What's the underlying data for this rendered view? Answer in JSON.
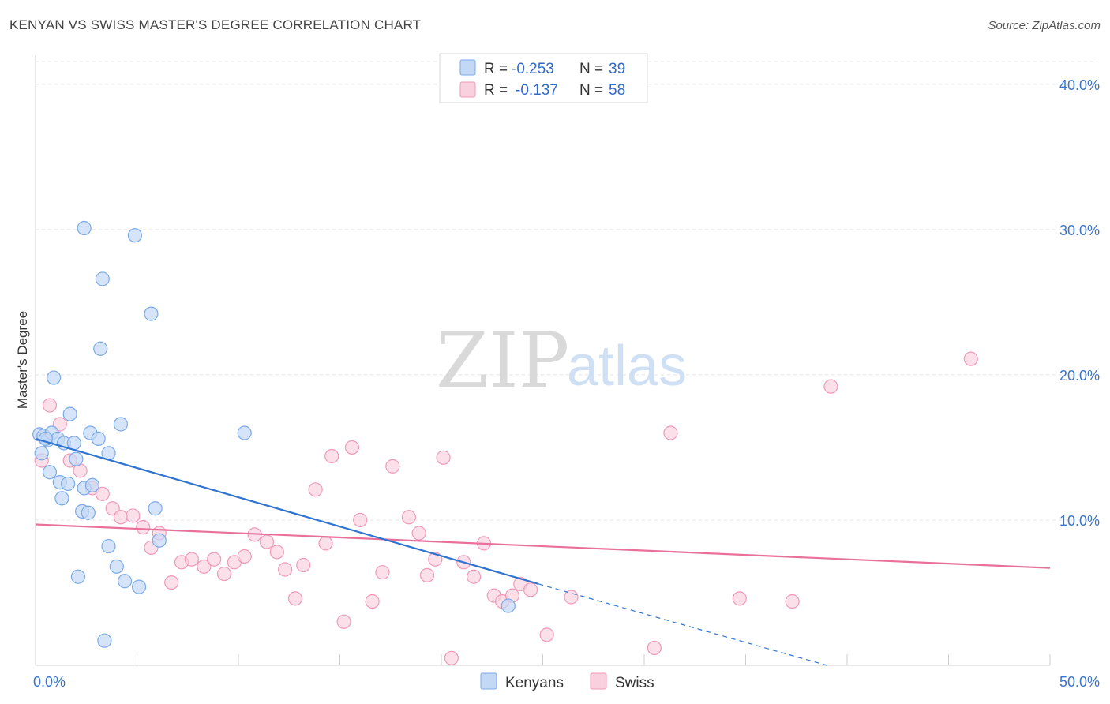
{
  "title": "KENYAN VS SWISS MASTER'S DEGREE CORRELATION CHART",
  "source": "Source: ZipAtlas.com",
  "watermark": {
    "zip": "ZIP",
    "atlas": "atlas"
  },
  "colors": {
    "kenyans": "#7aaae8",
    "kenyans_fill": "#c3d8f5",
    "swiss": "#f09ab8",
    "swiss_fill": "#f9d0de",
    "blue_line": "#2f74d0",
    "pink_line": "#e8709a",
    "tick_text": "#3b74c9"
  },
  "chart_data": {
    "type": "scatter",
    "title": "KENYAN VS SWISS MASTER'S DEGREE CORRELATION CHART",
    "xlabel": "",
    "ylabel": "Master's Degree",
    "xlim": [
      0,
      50
    ],
    "ylim": [
      0,
      42
    ],
    "x_tick_labels": [
      "0.0%",
      "50.0%"
    ],
    "y_ticks": [
      10,
      20,
      30,
      40
    ],
    "y_tick_labels": [
      "10.0%",
      "20.0%",
      "30.0%",
      "40.0%"
    ],
    "grid": true,
    "legend_top": [
      {
        "r_label": "R =",
        "r_value": "-0.253",
        "n_label": "N =",
        "n_value": "39"
      },
      {
        "r_label": "R =",
        "r_value": "-0.137",
        "n_label": "N =",
        "n_value": "58"
      }
    ],
    "series": [
      {
        "name": "Kenyans",
        "points": [
          [
            0.2,
            15.9
          ],
          [
            0.3,
            14.6
          ],
          [
            0.4,
            15.8
          ],
          [
            0.6,
            15.5
          ],
          [
            0.7,
            13.3
          ],
          [
            0.8,
            16.0
          ],
          [
            0.9,
            19.8
          ],
          [
            1.1,
            15.6
          ],
          [
            1.2,
            12.6
          ],
          [
            1.3,
            11.5
          ],
          [
            1.4,
            15.3
          ],
          [
            1.6,
            12.5
          ],
          [
            1.7,
            17.3
          ],
          [
            1.9,
            15.3
          ],
          [
            2.0,
            14.2
          ],
          [
            2.1,
            6.1
          ],
          [
            2.3,
            10.6
          ],
          [
            2.4,
            12.2
          ],
          [
            2.4,
            30.1
          ],
          [
            2.6,
            10.5
          ],
          [
            2.7,
            16.0
          ],
          [
            2.8,
            12.4
          ],
          [
            3.1,
            15.6
          ],
          [
            3.2,
            21.8
          ],
          [
            3.3,
            26.6
          ],
          [
            3.4,
            1.7
          ],
          [
            3.6,
            14.6
          ],
          [
            3.6,
            8.2
          ],
          [
            4.0,
            6.8
          ],
          [
            4.2,
            16.6
          ],
          [
            4.4,
            5.8
          ],
          [
            4.9,
            29.6
          ],
          [
            5.1,
            5.4
          ],
          [
            5.7,
            24.2
          ],
          [
            5.9,
            10.8
          ],
          [
            6.1,
            8.6
          ],
          [
            10.3,
            16.0
          ],
          [
            23.3,
            4.1
          ],
          [
            0.5,
            15.6
          ]
        ],
        "trend": {
          "x0": 0,
          "y0": 15.6,
          "x1": 24.8,
          "y1": 5.6,
          "dash_x1": 39,
          "dash_y1": 0
        }
      },
      {
        "name": "Swiss",
        "points": [
          [
            0.3,
            14.1
          ],
          [
            0.7,
            17.9
          ],
          [
            1.2,
            16.6
          ],
          [
            1.7,
            14.1
          ],
          [
            2.2,
            13.4
          ],
          [
            2.8,
            12.2
          ],
          [
            3.3,
            11.8
          ],
          [
            3.8,
            10.8
          ],
          [
            4.2,
            10.2
          ],
          [
            4.8,
            10.3
          ],
          [
            5.3,
            9.5
          ],
          [
            5.7,
            8.1
          ],
          [
            6.1,
            9.1
          ],
          [
            6.7,
            5.7
          ],
          [
            7.2,
            7.1
          ],
          [
            7.7,
            7.3
          ],
          [
            8.3,
            6.8
          ],
          [
            8.8,
            7.3
          ],
          [
            9.3,
            6.3
          ],
          [
            9.8,
            7.1
          ],
          [
            10.3,
            7.5
          ],
          [
            10.8,
            9.0
          ],
          [
            11.4,
            8.5
          ],
          [
            11.9,
            7.8
          ],
          [
            12.3,
            6.6
          ],
          [
            12.8,
            4.6
          ],
          [
            13.2,
            6.9
          ],
          [
            13.8,
            12.1
          ],
          [
            14.3,
            8.4
          ],
          [
            14.6,
            14.4
          ],
          [
            15.2,
            3.0
          ],
          [
            15.6,
            15.0
          ],
          [
            16.0,
            10.0
          ],
          [
            16.6,
            4.4
          ],
          [
            17.1,
            6.4
          ],
          [
            17.6,
            13.7
          ],
          [
            18.4,
            10.2
          ],
          [
            18.9,
            9.1
          ],
          [
            19.3,
            6.2
          ],
          [
            19.7,
            7.3
          ],
          [
            20.1,
            14.3
          ],
          [
            20.5,
            0.5
          ],
          [
            21.1,
            7.1
          ],
          [
            21.6,
            6.1
          ],
          [
            22.1,
            8.4
          ],
          [
            22.6,
            4.8
          ],
          [
            23.0,
            4.4
          ],
          [
            23.5,
            4.8
          ],
          [
            23.9,
            5.6
          ],
          [
            24.4,
            5.2
          ],
          [
            25.2,
            2.1
          ],
          [
            26.4,
            4.7
          ],
          [
            30.5,
            1.2
          ],
          [
            31.3,
            16.0
          ],
          [
            34.7,
            4.6
          ],
          [
            37.3,
            4.4
          ],
          [
            39.2,
            19.2
          ],
          [
            46.1,
            21.1
          ]
        ],
        "trend": {
          "x0": 0,
          "y0": 9.7,
          "x1": 50,
          "y1": 6.7
        }
      }
    ],
    "legend_bottom": [
      "Kenyans",
      "Swiss"
    ]
  }
}
